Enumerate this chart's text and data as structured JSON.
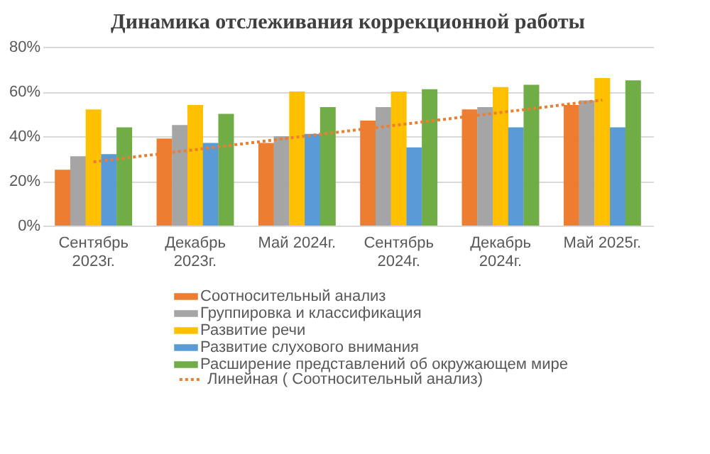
{
  "chart_data": {
    "type": "bar",
    "title": "Динамика  отслеживания коррекционной работы",
    "categories": [
      "Сентябрь\n2023г.",
      "Декабрь\n2023г.",
      "Май   2024г.",
      "Сентябрь\n2024г.",
      "Декабрь\n2024г.",
      "Май 2025г."
    ],
    "series": [
      {
        "name": "Соотносительный анализ",
        "color": "#ed7d31",
        "values": [
          25,
          39,
          37,
          47,
          52,
          54
        ]
      },
      {
        "name": "Группировка и классификация",
        "color": "#a5a5a5",
        "values": [
          31,
          45,
          40,
          53,
          53,
          56
        ]
      },
      {
        "name": "Развитие речи",
        "color": "#ffc000",
        "values": [
          52,
          54,
          60,
          60,
          62,
          66
        ]
      },
      {
        "name": "Развитие слухового         внимания",
        "color": "#5b9bd5",
        "values": [
          32,
          37,
          41,
          35,
          44,
          44
        ]
      },
      {
        "name": "Расширение представлений об окружающем мире",
        "color": "#70ad47",
        "values": [
          44,
          50,
          53,
          61,
          63,
          65
        ]
      },
      {
        "name": "Линейная ( Соотносительный анализ)",
        "color": "#ed7d31",
        "type": "line",
        "line_style": "dotted",
        "values": [
          28.5,
          34.0,
          39.6,
          45.1,
          50.6,
          56.2
        ]
      }
    ],
    "ylim": [
      0,
      80
    ],
    "yticks": [
      {
        "value": 0,
        "label": "0%"
      },
      {
        "value": 20,
        "label": "20%"
      },
      {
        "value": 40,
        "label": "40%"
      },
      {
        "value": 60,
        "label": "60%"
      },
      {
        "value": 80,
        "label": "80%"
      }
    ],
    "grid": "y",
    "legend": "bottom"
  }
}
